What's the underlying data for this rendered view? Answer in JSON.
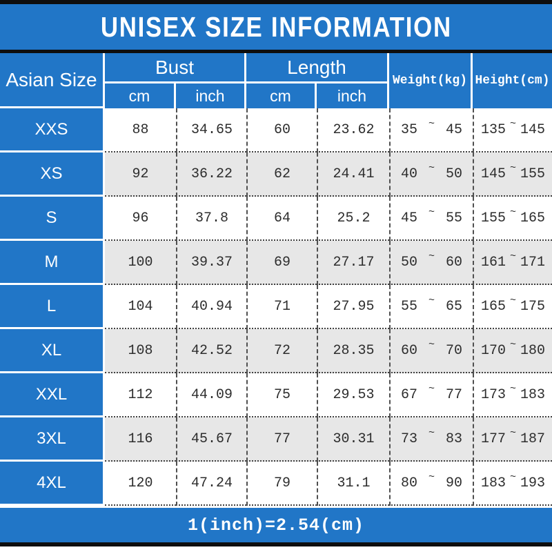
{
  "title": "UNISEX SIZE INFORMATION",
  "header": {
    "size_col": "Asian Size",
    "bust": "Bust",
    "length": "Length",
    "unit_cm": "cm",
    "unit_inch": "inch",
    "weight": "Weight(kg)",
    "height": "Height(cm)",
    "tilde": "~"
  },
  "rows": [
    {
      "size": "XXS",
      "bust_cm": "88",
      "bust_inch": "34.65",
      "length_cm": "60",
      "length_inch": "23.62",
      "weight_min": "35",
      "weight_max": "45",
      "height_min": "135",
      "height_max": "145"
    },
    {
      "size": "XS",
      "bust_cm": "92",
      "bust_inch": "36.22",
      "length_cm": "62",
      "length_inch": "24.41",
      "weight_min": "40",
      "weight_max": "50",
      "height_min": "145",
      "height_max": "155"
    },
    {
      "size": "S",
      "bust_cm": "96",
      "bust_inch": "37.8",
      "length_cm": "64",
      "length_inch": "25.2",
      "weight_min": "45",
      "weight_max": "55",
      "height_min": "155",
      "height_max": "165"
    },
    {
      "size": "M",
      "bust_cm": "100",
      "bust_inch": "39.37",
      "length_cm": "69",
      "length_inch": "27.17",
      "weight_min": "50",
      "weight_max": "60",
      "height_min": "161",
      "height_max": "171"
    },
    {
      "size": "L",
      "bust_cm": "104",
      "bust_inch": "40.94",
      "length_cm": "71",
      "length_inch": "27.95",
      "weight_min": "55",
      "weight_max": "65",
      "height_min": "165",
      "height_max": "175"
    },
    {
      "size": "XL",
      "bust_cm": "108",
      "bust_inch": "42.52",
      "length_cm": "72",
      "length_inch": "28.35",
      "weight_min": "60",
      "weight_max": "70",
      "height_min": "170",
      "height_max": "180"
    },
    {
      "size": "XXL",
      "bust_cm": "112",
      "bust_inch": "44.09",
      "length_cm": "75",
      "length_inch": "29.53",
      "weight_min": "67",
      "weight_max": "77",
      "height_min": "173",
      "height_max": "183"
    },
    {
      "size": "3XL",
      "bust_cm": "116",
      "bust_inch": "45.67",
      "length_cm": "77",
      "length_inch": "30.31",
      "weight_min": "73",
      "weight_max": "83",
      "height_min": "177",
      "height_max": "187"
    },
    {
      "size": "4XL",
      "bust_cm": "120",
      "bust_inch": "47.24",
      "length_cm": "79",
      "length_inch": "31.1",
      "weight_min": "80",
      "weight_max": "90",
      "height_min": "183",
      "height_max": "193"
    }
  ],
  "footer": {
    "note": "1(inch)=2.54(cm)"
  },
  "colors": {
    "primary_blue": "#2176c7",
    "row_stripe_gray": "#e7e7e7",
    "border_black": "#0e0e0e",
    "text_dark": "#2d2d2d",
    "text_white": "#ffffff"
  }
}
